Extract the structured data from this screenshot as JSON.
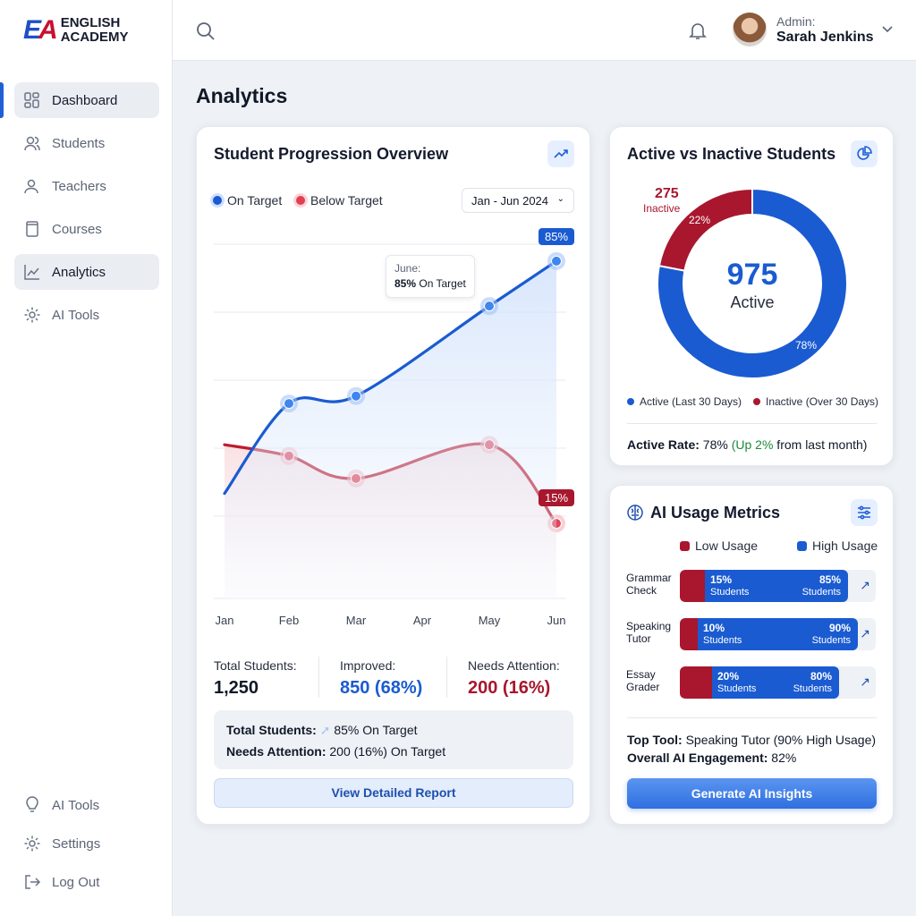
{
  "brand": {
    "line1": "ENGLISH",
    "line2": "ACADEMY",
    "mark_e": "E",
    "mark_a": "A"
  },
  "sidebar": {
    "items": [
      {
        "label": "Dashboard",
        "icon": "grid-icon",
        "active": true
      },
      {
        "label": "Students",
        "icon": "users-icon"
      },
      {
        "label": "Teachers",
        "icon": "user-icon"
      },
      {
        "label": "Courses",
        "icon": "book-icon"
      },
      {
        "label": "Analytics",
        "icon": "chart-icon",
        "highlighted": true
      },
      {
        "label": "AI Tools",
        "icon": "gear-icon"
      }
    ],
    "bottom": [
      {
        "label": "AI Tools",
        "icon": "lightbulb-icon"
      },
      {
        "label": "Settings",
        "icon": "gear-icon"
      },
      {
        "label": "Log Out",
        "icon": "logout-icon"
      }
    ]
  },
  "header": {
    "user_role": "Admin:",
    "user_name": "Sarah Jenkins"
  },
  "page": {
    "title": "Analytics"
  },
  "progression": {
    "title": "Student Progression Overview",
    "legend": [
      "On Target",
      "Below Target"
    ],
    "range": "Jan - Jun 2024",
    "tooltip": {
      "title": "June:",
      "value": "85%",
      "suffix": " On Target"
    },
    "badge_high": "85%",
    "badge_low": "15%",
    "stats": [
      {
        "label": "Total Students:",
        "value": "1,250"
      },
      {
        "label": "Improved:",
        "value": "850 (68%)"
      },
      {
        "label": "Needs Attention:",
        "value": "200 (16%)"
      }
    ],
    "summary": {
      "l1_label": "Total Students:",
      "l1_value": "85% On Target",
      "l2_label": "Needs Attention:",
      "l2_value": "200 (16%) On Target"
    },
    "button": "View Detailed Report"
  },
  "chart_data": [
    {
      "type": "line",
      "categories": [
        "Jan",
        "Feb",
        "Mar",
        "Apr",
        "May",
        "Jun"
      ],
      "series": [
        {
          "name": "On Target",
          "values": [
            23,
            47,
            49,
            null,
            73,
            85
          ],
          "color": "#1a5bd1"
        },
        {
          "name": "Below Target",
          "values": [
            36,
            33,
            27,
            null,
            36,
            15
          ],
          "color": "#c01a2e"
        }
      ],
      "grid": true,
      "legend": "top-left"
    },
    {
      "type": "pie",
      "slices": [
        {
          "name": "Active (Last 30 Days)",
          "value": 78,
          "color": "#1a5bd1"
        },
        {
          "name": "Inactive (Over 30 Days)",
          "value": 22,
          "color": "#a8172e"
        }
      ]
    }
  ],
  "active": {
    "title": "Active vs Inactive Students",
    "center_value": "975",
    "center_label": "Active",
    "inactive_count": "275",
    "inactive_label": "Inactive",
    "pct_inactive": "22%",
    "pct_active": "78%",
    "legend": [
      "Active (Last 30 Days)",
      "Inactive (Over 30 Days)"
    ],
    "rate_label": "Active Rate:",
    "rate_value": " 78% ",
    "rate_change": "(Up 2%",
    "rate_tail": " from last month)"
  },
  "ai": {
    "title": "AI Usage Metrics",
    "legend": [
      "Low Usage",
      "High Usage"
    ],
    "tools": [
      {
        "name1": "Grammar",
        "name2": "Check",
        "low": 15,
        "high": 85,
        "low_label": "15%",
        "high_label": "85%",
        "unit": "Students"
      },
      {
        "name1": "Speaking",
        "name2": "Tutor",
        "low": 10,
        "high": 90,
        "low_label": "10%",
        "high_label": "90%",
        "unit": "Students"
      },
      {
        "name1": "Essay",
        "name2": "Grader",
        "low": 20,
        "high": 80,
        "low_label": "20%",
        "high_label": "80%",
        "unit": "Students"
      }
    ],
    "top_label": "Top Tool:",
    "top_value": " Speaking Tutor (90% High Usage)",
    "eng_label": "Overall AI Engagement:",
    "eng_value": " 82%",
    "button": "Generate AI Insights"
  }
}
